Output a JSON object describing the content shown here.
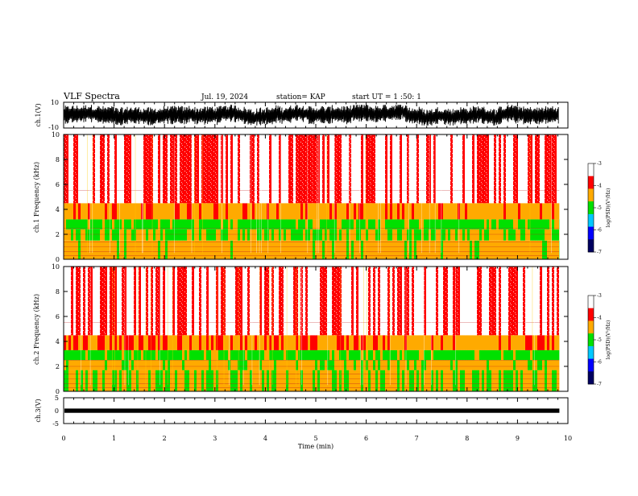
{
  "header": {
    "title": "VLF Spectra",
    "date": "Jul. 19, 2024",
    "station": "station= KAP",
    "start_ut": "start UT = 1 :50: 1"
  },
  "chart_data": [
    {
      "id": "ch1_waveform",
      "type": "line",
      "ylabel": "ch.1(V)",
      "ylim": [
        -10,
        10
      ],
      "ytick_labels": [
        "10",
        "-10"
      ],
      "xlim": [
        0,
        10
      ],
      "data_extent_x": [
        0,
        9.83
      ],
      "series_color": "#000000",
      "description_level": "noise between about -8 and 8 V"
    },
    {
      "id": "ch1_spectrogram",
      "type": "heatmap",
      "ylabel": "ch.1 Frequency (kHz)",
      "ylim": [
        0,
        10
      ],
      "ytick_labels": [
        "0",
        "2",
        "4",
        "6",
        "8",
        "10"
      ],
      "xlim": [
        0,
        10
      ],
      "data_extent_x": [
        0,
        9.83
      ],
      "bands_khz": [
        {
          "from": 0,
          "to": 1.5,
          "log_psd": -4.4
        },
        {
          "from": 1.5,
          "to": 2.4,
          "log_psd": -4.7
        },
        {
          "from": 2.4,
          "to": 3.2,
          "log_psd": -4.9
        },
        {
          "from": 3.2,
          "to": 4.5,
          "log_psd": -4.2
        },
        {
          "from": 4.5,
          "to": 10,
          "log_psd": -3.3
        }
      ],
      "colorbar": {
        "label": "log(PSD)(V²/Hz)",
        "range": [
          -7,
          -3
        ],
        "tick_labels": [
          "-3",
          "-4",
          "-5",
          "-6",
          "-7"
        ],
        "colors": [
          "#ffffff",
          "#ff0000",
          "#ffaa00",
          "#00e000",
          "#00c8ff",
          "#0000ff",
          "#000060"
        ]
      }
    },
    {
      "id": "ch2_spectrogram",
      "type": "heatmap",
      "ylabel": "ch.2 Frequency (kHz)",
      "ylim": [
        0,
        10
      ],
      "ytick_labels": [
        "0",
        "2",
        "4",
        "6",
        "8",
        "10"
      ],
      "xlim": [
        0,
        10
      ],
      "data_extent_x": [
        0,
        9.83
      ],
      "bands_khz": [
        {
          "from": 0,
          "to": 1.7,
          "log_psd": -4.6
        },
        {
          "from": 1.7,
          "to": 2.5,
          "log_psd": -4.5
        },
        {
          "from": 2.5,
          "to": 3.3,
          "log_psd": -4.9
        },
        {
          "from": 3.3,
          "to": 4.5,
          "log_psd": -4.1
        },
        {
          "from": 4.5,
          "to": 10,
          "log_psd": -3.3
        }
      ],
      "colorbar": {
        "label": "log(PSD)(V²/Hz)",
        "range": [
          -7,
          -3
        ],
        "tick_labels": [
          "-3",
          "-4",
          "-5",
          "-6",
          "-7"
        ],
        "colors": [
          "#ffffff",
          "#ff0000",
          "#ffaa00",
          "#00e000",
          "#00c8ff",
          "#0000ff",
          "#000060"
        ]
      }
    },
    {
      "id": "ch3_waveform",
      "type": "line",
      "ylabel": "ch.3(V)",
      "ylim": [
        -5,
        5
      ],
      "ytick_labels": [
        "5",
        "0",
        "-5"
      ],
      "xlim": [
        0,
        10
      ],
      "data_extent_x": [
        0,
        9.83
      ],
      "level_band": [
        -0.2,
        0.2
      ],
      "series_color": "#000000"
    }
  ],
  "x_axis": {
    "label": "Time (min)",
    "tick_labels": [
      "0",
      "1",
      "2",
      "3",
      "4",
      "5",
      "6",
      "7",
      "8",
      "9",
      "10"
    ]
  }
}
